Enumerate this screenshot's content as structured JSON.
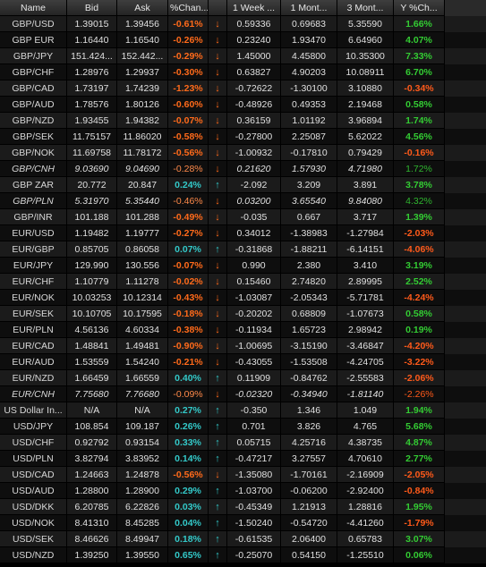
{
  "headers": [
    "Name",
    "Bid",
    "Ask",
    "%Chan...",
    "",
    "1 Week ...",
    "1 Mont...",
    "3 Mont...",
    "Y %Ch..."
  ],
  "rows": [
    {
      "name": "GBP/USD",
      "bid": "1.39015",
      "ask": "1.39456",
      "pct": "-0.61%",
      "dir": "down",
      "w1": "0.59336",
      "m1": "0.69683",
      "m3": "5.35590",
      "y": "1.66%",
      "pct_s": "neg",
      "w1_s": "",
      "y_s": "pos"
    },
    {
      "name": "GBP EUR",
      "bid": "1.16440",
      "ask": "1.16540",
      "pct": "-0.26%",
      "dir": "down",
      "w1": "0.23240",
      "m1": "1.93470",
      "m3": "6.64960",
      "y": "4.07%",
      "pct_s": "neg",
      "y_s": "pos"
    },
    {
      "name": "GBP/JPY",
      "bid": "151.424...",
      "ask": "152.442...",
      "pct": "-0.29%",
      "dir": "down",
      "w1": "1.45000",
      "m1": "4.45800",
      "m3": "10.35300",
      "y": "7.33%",
      "pct_s": "neg",
      "y_s": "pos"
    },
    {
      "name": "GBP/CHF",
      "bid": "1.28976",
      "ask": "1.29937",
      "pct": "-0.30%",
      "dir": "down",
      "w1": "0.63827",
      "m1": "4.90203",
      "m3": "10.08911",
      "y": "6.70%",
      "pct_s": "neg",
      "y_s": "pos"
    },
    {
      "name": "GBP/CAD",
      "bid": "1.73197",
      "ask": "1.74239",
      "pct": "-1.23%",
      "dir": "down",
      "w1": "-0.72622",
      "m1": "-1.30100",
      "m3": "3.10880",
      "y": "-0.34%",
      "pct_s": "neg",
      "y_s": "neg"
    },
    {
      "name": "GBP/AUD",
      "bid": "1.78576",
      "ask": "1.80126",
      "pct": "-0.60%",
      "dir": "down",
      "w1": "-0.48926",
      "m1": "0.49353",
      "m3": "2.19468",
      "y": "0.58%",
      "pct_s": "neg",
      "y_s": "pos"
    },
    {
      "name": "GBP/NZD",
      "bid": "1.93455",
      "ask": "1.94382",
      "pct": "-0.07%",
      "dir": "down",
      "w1": "0.36159",
      "m1": "1.01192",
      "m3": "3.96894",
      "y": "1.74%",
      "pct_s": "neg",
      "y_s": "pos"
    },
    {
      "name": "GBP/SEK",
      "bid": "11.75157",
      "ask": "11.86020",
      "pct": "-0.58%",
      "dir": "down",
      "w1": "-0.27800",
      "m1": "2.25087",
      "m3": "5.62022",
      "y": "4.56%",
      "pct_s": "neg",
      "y_s": "pos"
    },
    {
      "name": "GBP/NOK",
      "bid": "11.69758",
      "ask": "11.78172",
      "pct": "-0.56%",
      "dir": "down",
      "w1": "-1.00932",
      "m1": "-0.17810",
      "m3": "0.79429",
      "y": "-0.16%",
      "pct_s": "neg",
      "y_s": "neg"
    },
    {
      "name": "GBP/CNH",
      "bid": "9.03690",
      "ask": "9.04690",
      "pct": "-0.28%",
      "dir": "down",
      "w1": "0.21620",
      "m1": "1.57930",
      "m3": "4.71980",
      "y": "1.72%",
      "pct_s": "negdim",
      "y_s": "posdim",
      "dim": true
    },
    {
      "name": "GBP ZAR",
      "bid": "20.772",
      "ask": "20.847",
      "pct": "0.24%",
      "dir": "up",
      "w1": "-2.092",
      "m1": "3.209",
      "m3": "3.891",
      "y": "3.78%",
      "pct_s": "pos",
      "y_s": "pos"
    },
    {
      "name": "GBP/PLN",
      "bid": "5.31970",
      "ask": "5.35440",
      "pct": "-0.46%",
      "dir": "down",
      "w1": "0.03200",
      "m1": "3.65540",
      "m3": "9.84080",
      "y": "4.32%",
      "pct_s": "negdim",
      "y_s": "posdim",
      "dim": true
    },
    {
      "name": "GBP/INR",
      "bid": "101.188",
      "ask": "101.288",
      "pct": "-0.49%",
      "dir": "down",
      "w1": "-0.035",
      "m1": "0.667",
      "m3": "3.717",
      "y": "1.39%",
      "pct_s": "neg",
      "y_s": "pos"
    },
    {
      "name": "EUR/USD",
      "bid": "1.19482",
      "ask": "1.19777",
      "pct": "-0.27%",
      "dir": "down",
      "w1": "0.34012",
      "m1": "-1.38983",
      "m3": "-1.27984",
      "y": "-2.03%",
      "pct_s": "neg",
      "y_s": "neg"
    },
    {
      "name": "EUR/GBP",
      "bid": "0.85705",
      "ask": "0.86058",
      "pct": "0.07%",
      "dir": "up",
      "w1": "-0.31868",
      "m1": "-1.88211",
      "m3": "-6.14151",
      "y": "-4.06%",
      "pct_s": "pos",
      "y_s": "neg"
    },
    {
      "name": "EUR/JPY",
      "bid": "129.990",
      "ask": "130.556",
      "pct": "-0.07%",
      "dir": "down",
      "w1": "0.990",
      "m1": "2.380",
      "m3": "3.410",
      "y": "3.19%",
      "pct_s": "neg",
      "y_s": "pos"
    },
    {
      "name": "EUR/CHF",
      "bid": "1.10779",
      "ask": "1.11278",
      "pct": "-0.02%",
      "dir": "down",
      "w1": "0.15460",
      "m1": "2.74820",
      "m3": "2.89995",
      "y": "2.52%",
      "pct_s": "neg",
      "y_s": "pos"
    },
    {
      "name": "EUR/NOK",
      "bid": "10.03253",
      "ask": "10.12314",
      "pct": "-0.43%",
      "dir": "down",
      "w1": "-1.03087",
      "m1": "-2.05343",
      "m3": "-5.71781",
      "y": "-4.24%",
      "pct_s": "neg",
      "y_s": "neg"
    },
    {
      "name": "EUR/SEK",
      "bid": "10.10705",
      "ask": "10.17595",
      "pct": "-0.18%",
      "dir": "down",
      "w1": "-0.20202",
      "m1": "0.68809",
      "m3": "-1.07673",
      "y": "0.58%",
      "pct_s": "neg",
      "y_s": "pos"
    },
    {
      "name": "EUR/PLN",
      "bid": "4.56136",
      "ask": "4.60334",
      "pct": "-0.38%",
      "dir": "down",
      "w1": "-0.11934",
      "m1": "1.65723",
      "m3": "2.98942",
      "y": "0.19%",
      "pct_s": "neg",
      "y_s": "pos"
    },
    {
      "name": "EUR/CAD",
      "bid": "1.48841",
      "ask": "1.49481",
      "pct": "-0.90%",
      "dir": "down",
      "w1": "-1.00695",
      "m1": "-3.15190",
      "m3": "-3.46847",
      "y": "-4.20%",
      "pct_s": "neg",
      "y_s": "neg"
    },
    {
      "name": "EUR/AUD",
      "bid": "1.53559",
      "ask": "1.54240",
      "pct": "-0.21%",
      "dir": "down",
      "w1": "-0.43055",
      "m1": "-1.53508",
      "m3": "-4.24705",
      "y": "-3.22%",
      "pct_s": "neg",
      "y_s": "neg"
    },
    {
      "name": "EUR/NZD",
      "bid": "1.66459",
      "ask": "1.66559",
      "pct": "0.40%",
      "dir": "up",
      "w1": "0.11909",
      "m1": "-0.84762",
      "m3": "-2.55583",
      "y": "-2.06%",
      "pct_s": "pos",
      "y_s": "neg"
    },
    {
      "name": "EUR/CNH",
      "bid": "7.75680",
      "ask": "7.76680",
      "pct": "-0.09%",
      "dir": "down",
      "w1": "-0.02320",
      "m1": "-0.34940",
      "m3": "-1.81140",
      "y": "-2.26%",
      "pct_s": "negdim",
      "y_s": "negdim",
      "dim": true
    },
    {
      "name": "US Dollar In...",
      "bid": "N/A",
      "ask": "N/A",
      "pct": "0.27%",
      "dir": "up",
      "w1": "-0.350",
      "m1": "1.346",
      "m3": "1.049",
      "y": "1.94%",
      "pct_s": "pos",
      "y_s": "pos"
    },
    {
      "name": "USD/JPY",
      "bid": "108.854",
      "ask": "109.187",
      "pct": "0.26%",
      "dir": "up",
      "w1": "0.701",
      "m1": "3.826",
      "m3": "4.765",
      "y": "5.68%",
      "pct_s": "pos",
      "y_s": "pos"
    },
    {
      "name": "USD/CHF",
      "bid": "0.92792",
      "ask": "0.93154",
      "pct": "0.33%",
      "dir": "up",
      "w1": "0.05715",
      "m1": "4.25716",
      "m3": "4.38735",
      "y": "4.87%",
      "pct_s": "pos",
      "y_s": "pos"
    },
    {
      "name": "USD/PLN",
      "bid": "3.82794",
      "ask": "3.83952",
      "pct": "0.14%",
      "dir": "up",
      "w1": "-0.47217",
      "m1": "3.27557",
      "m3": "4.70610",
      "y": "2.77%",
      "pct_s": "pos",
      "y_s": "pos"
    },
    {
      "name": "USD/CAD",
      "bid": "1.24663",
      "ask": "1.24878",
      "pct": "-0.56%",
      "dir": "down",
      "w1": "-1.35080",
      "m1": "-1.70161",
      "m3": "-2.16909",
      "y": "-2.05%",
      "pct_s": "neg",
      "y_s": "neg"
    },
    {
      "name": "USD/AUD",
      "bid": "1.28800",
      "ask": "1.28900",
      "pct": "0.29%",
      "dir": "up",
      "w1": "-1.03700",
      "m1": "-0.06200",
      "m3": "-2.92400",
      "y": "-0.84%",
      "pct_s": "pos",
      "y_s": "neg"
    },
    {
      "name": "USD/DKK",
      "bid": "6.20785",
      "ask": "6.22826",
      "pct": "0.03%",
      "dir": "up",
      "w1": "-0.45349",
      "m1": "1.21913",
      "m3": "1.28816",
      "y": "1.95%",
      "pct_s": "pos",
      "y_s": "pos"
    },
    {
      "name": "USD/NOK",
      "bid": "8.41310",
      "ask": "8.45285",
      "pct": "0.04%",
      "dir": "up",
      "w1": "-1.50240",
      "m1": "-0.54720",
      "m3": "-4.41260",
      "y": "-1.79%",
      "pct_s": "pos",
      "y_s": "neg"
    },
    {
      "name": "USD/SEK",
      "bid": "8.46626",
      "ask": "8.49947",
      "pct": "0.18%",
      "dir": "up",
      "w1": "-0.61535",
      "m1": "2.06400",
      "m3": "0.65783",
      "y": "3.07%",
      "pct_s": "pos",
      "y_s": "pos"
    },
    {
      "name": "USD/NZD",
      "bid": "1.39250",
      "ask": "1.39550",
      "pct": "0.65%",
      "dir": "up",
      "w1": "-0.25070",
      "m1": "0.54150",
      "m3": "-1.25510",
      "y": "0.06%",
      "pct_s": "pos",
      "y_s": "pos"
    }
  ]
}
